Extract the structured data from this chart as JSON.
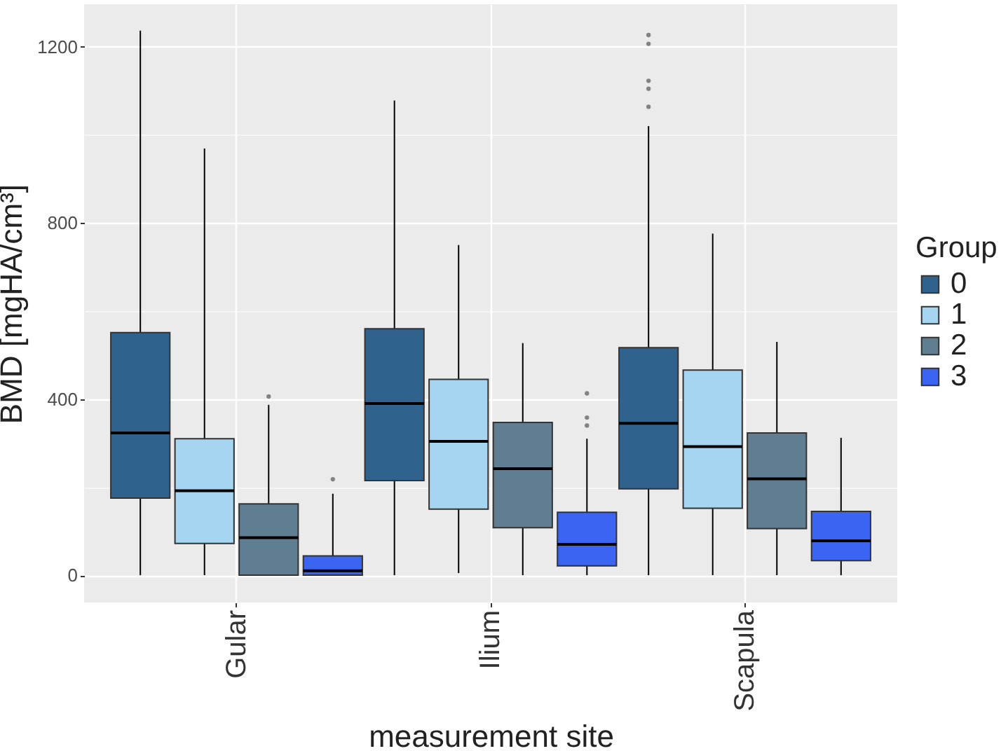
{
  "chart_data": {
    "type": "box",
    "xlabel": "measurement site",
    "ylabel": "BMD [mgHA/cm³]",
    "legend_title": "Group",
    "categories": [
      "Gular",
      "Ilium",
      "Scapula"
    ],
    "series": [
      {
        "name": "0",
        "color": "#30628e",
        "boxes": [
          {
            "low": 0,
            "q1": 175,
            "median": 323,
            "q3": 551,
            "high": 1237
          },
          {
            "low": 0,
            "q1": 215,
            "median": 390,
            "q3": 560,
            "high": 1078
          },
          {
            "low": 0,
            "q1": 196,
            "median": 345,
            "q3": 517,
            "high": 1020,
            "outliers": [
              1064,
              1105,
              1123,
              1207,
              1227
            ]
          }
        ]
      },
      {
        "name": "1",
        "color": "#a5d5f1",
        "boxes": [
          {
            "low": 0,
            "q1": 72,
            "median": 192,
            "q3": 310,
            "high": 969
          },
          {
            "low": 5,
            "q1": 150,
            "median": 304,
            "q3": 445,
            "high": 750
          },
          {
            "low": 0,
            "q1": 152,
            "median": 292,
            "q3": 466,
            "high": 776
          }
        ]
      },
      {
        "name": "2",
        "color": "#5f7e92",
        "boxes": [
          {
            "low": 0,
            "q1": 0,
            "median": 85,
            "q3": 162,
            "high": 387,
            "outliers": [
              406
            ]
          },
          {
            "low": 0,
            "q1": 108,
            "median": 242,
            "q3": 347,
            "high": 527
          },
          {
            "low": 0,
            "q1": 106,
            "median": 219,
            "q3": 323,
            "high": 530
          }
        ]
      },
      {
        "name": "3",
        "color": "#3b64f2",
        "boxes": [
          {
            "low": 0,
            "q1": 0,
            "median": 10,
            "q3": 44,
            "high": 185,
            "outliers": [
              218
            ]
          },
          {
            "low": 0,
            "q1": 21,
            "median": 70,
            "q3": 143,
            "high": 310,
            "outliers": [
              340,
              358,
              413
            ]
          },
          {
            "low": 0,
            "q1": 33,
            "median": 78,
            "q3": 145,
            "high": 312
          }
        ]
      }
    ],
    "ylim": [
      -62,
      1297
    ],
    "yticks": [
      0,
      {
        "value": 200,
        "label": null
      },
      400,
      {
        "value": 600,
        "label": null
      },
      800,
      {
        "value": 1000,
        "label": null
      },
      1200
    ],
    "grid": true,
    "legend": "right"
  }
}
